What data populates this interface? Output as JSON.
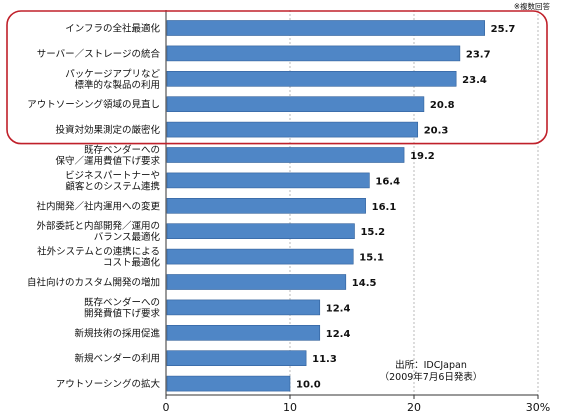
{
  "chart_data": {
    "type": "bar",
    "orientation": "horizontal",
    "note": "※複数回答",
    "categories": [
      "インフラの全社最適化",
      "サーバー／ストレージの統合",
      "パッケージアプリなど\n標準的な製品の利用",
      "アウトソーシング領域の見直し",
      "投資対効果測定の厳密化",
      "既存ベンダーへの\n保守／運用費値下げ要求",
      "ビジネスパートナーや\n顧客とのシステム連携",
      "社内開発／社内運用への変更",
      "外部委託と内部開発／運用の\nバランス最適化",
      "社外システムとの連携による\nコスト最適化",
      "自社向けのカスタム開発の増加",
      "既存ベンダーへの\n開発費値下げ要求",
      "新規技術の採用促進",
      "新規ベンダーの利用",
      "アウトソーシングの拡大"
    ],
    "values": [
      25.7,
      23.7,
      23.4,
      20.8,
      20.3,
      19.2,
      16.4,
      16.1,
      15.2,
      15.1,
      14.5,
      12.4,
      12.4,
      11.3,
      10.0
    ],
    "value_labels": [
      "25.7",
      "23.7",
      "23.4",
      "20.8",
      "20.3",
      "19.2",
      "16.4",
      "16.1",
      "15.2",
      "15.1",
      "14.5",
      "12.4",
      "12.4",
      "11.3",
      "10.0"
    ],
    "xlim": [
      0,
      30
    ],
    "x_ticks": [
      "0",
      "10",
      "20",
      "30%"
    ],
    "highlight_range": [
      0,
      4
    ],
    "source_lines": [
      "出所：IDCJapan",
      "（2009年7月6日発表）"
    ],
    "colors": {
      "bar": "#4f86c6",
      "bar_edge": "#2f5f9a",
      "highlight_border": "#c0202a",
      "gridline": "#aaaaaa",
      "text": "#111111"
    }
  }
}
